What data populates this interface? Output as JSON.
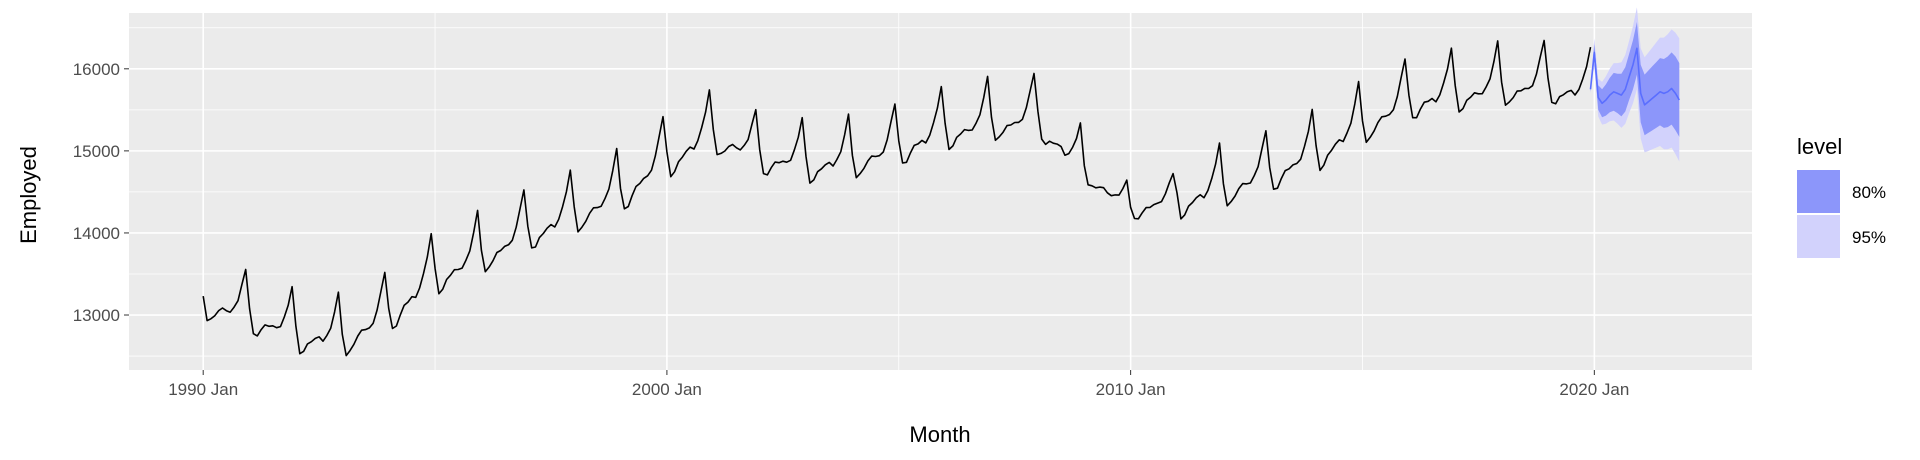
{
  "chart_data": {
    "type": "line",
    "title": "",
    "xlabel": "Month",
    "ylabel": "Employed",
    "x_ticks": [
      {
        "label": "1990 Jan",
        "value": 1990.0
      },
      {
        "label": "2000 Jan",
        "value": 2000.0
      },
      {
        "label": "2010 Jan",
        "value": 2010.0
      },
      {
        "label": "2020 Jan",
        "value": 2020.0
      }
    ],
    "y_ticks": [
      13000,
      14000,
      15000,
      16000
    ],
    "xlim": [
      1988.4,
      2023.4
    ],
    "ylim": [
      12330,
      16680
    ],
    "grid": true,
    "legend": {
      "title": "level",
      "placement": "right",
      "entries": [
        {
          "label": "80%",
          "color": "#8c96fa"
        },
        {
          "label": "95%",
          "color": "#d2d2fc"
        }
      ]
    },
    "seasonal_pattern": [
      0,
      -300,
      -280,
      -200,
      -140,
      -110,
      -100,
      -120,
      -60,
      60,
      250,
      480
    ],
    "base_series": {
      "x": [
        1990.0,
        1991.0,
        1992.0,
        1993.0,
        1994.0,
        1995.0,
        1996.0,
        1997.0,
        1998.0,
        1999.0,
        2000.0,
        2001.0,
        2002.0,
        2003.0,
        2004.0,
        2005.0,
        2006.0,
        2007.0,
        2008.0,
        2009.0,
        2010.0,
        2011.0,
        2012.0,
        2013.0,
        2014.0,
        2015.0,
        2016.0,
        2017.0,
        2018.0,
        2019.0,
        2019.917
      ],
      "y": [
        13250,
        13080,
        12850,
        12780,
        13080,
        13550,
        13800,
        14080,
        14300,
        14550,
        14980,
        15280,
        15020,
        14920,
        14960,
        15120,
        15320,
        15420,
        15480,
        14800,
        14320,
        14480,
        14620,
        14800,
        15050,
        15380,
        15680,
        15780,
        15850,
        15880,
        15780
      ]
    },
    "series": [
      {
        "name": "",
        "color": "#000000",
        "x_start": 1990.0,
        "x_end": 2019.917
      },
      {
        "name": "",
        "color": "#5a6eff",
        "forecast": true,
        "x": [
          2019.917,
          2020.0,
          2020.083,
          2020.167,
          2020.25,
          2020.333,
          2020.417,
          2020.5,
          2020.583,
          2020.667,
          2020.75,
          2020.833,
          2020.917,
          2021.0,
          2021.083,
          2021.167,
          2021.25,
          2021.333,
          2021.417,
          2021.5,
          2021.583,
          2021.667,
          2021.75,
          2021.833
        ],
        "y": [
          15750,
          16200,
          15650,
          15580,
          15620,
          15680,
          15720,
          15700,
          15680,
          15750,
          15900,
          16050,
          16250,
          15700,
          15560,
          15600,
          15640,
          15680,
          15720,
          15700,
          15720,
          15760,
          15700,
          15620
        ],
        "lo80": [
          15720,
          16100,
          15500,
          15410,
          15430,
          15470,
          15490,
          15460,
          15420,
          15480,
          15620,
          15750,
          15930,
          15350,
          15190,
          15220,
          15250,
          15280,
          15310,
          15280,
          15290,
          15320,
          15250,
          15170
        ],
        "hi80": [
          15780,
          16300,
          15800,
          15750,
          15810,
          15890,
          15950,
          15940,
          15940,
          16020,
          16180,
          16350,
          16570,
          16050,
          15930,
          15980,
          16030,
          16080,
          16130,
          16120,
          16150,
          16200,
          16150,
          16070
        ],
        "lo95": [
          15700,
          16030,
          15420,
          15320,
          15330,
          15360,
          15370,
          15330,
          15280,
          15330,
          15460,
          15580,
          15750,
          15150,
          14980,
          15000,
          15020,
          15040,
          15060,
          15020,
          15020,
          15040,
          14960,
          14870
        ],
        "hi95": [
          15800,
          16370,
          15880,
          15840,
          15910,
          16000,
          16070,
          16070,
          16080,
          16170,
          16340,
          16520,
          16750,
          16250,
          16140,
          16200,
          16260,
          16320,
          16380,
          16380,
          16420,
          16480,
          16440,
          16370
        ]
      }
    ]
  }
}
